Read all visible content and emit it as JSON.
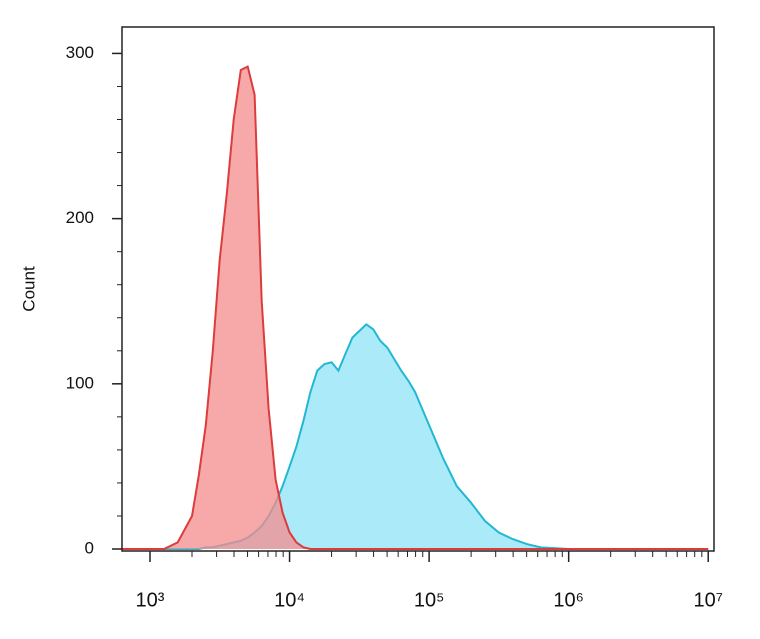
{
  "chart_data": {
    "type": "area",
    "y_label": "Count",
    "x_scale": "log",
    "xlim": [
      630,
      11000000
    ],
    "ylim": [
      -1.2,
      316
    ],
    "xticks": [
      {
        "value": 1000,
        "label": "10³"
      },
      {
        "value": 10000,
        "label": "10⁴"
      },
      {
        "value": 100000,
        "label": "10⁵"
      },
      {
        "value": 1000000,
        "label": "10⁶"
      },
      {
        "value": 10000000,
        "label": "10⁷"
      }
    ],
    "yticks": [
      0,
      100,
      200,
      300
    ],
    "x": [
      630,
      1000,
      1260,
      1580,
      2000,
      2240,
      2510,
      2820,
      3160,
      3550,
      3980,
      4470,
      5010,
      5620,
      6310,
      7080,
      7940,
      8910,
      10000,
      11200,
      12600,
      14100,
      15800,
      17800,
      20000,
      22400,
      25100,
      28200,
      31600,
      35500,
      39800,
      44700,
      50100,
      56200,
      63100,
      70800,
      79400,
      89100,
      100000,
      126000,
      158000,
      200000,
      251000,
      316000,
      398000,
      501000,
      631000,
      1000000,
      10000000
    ],
    "series": [
      {
        "color": "#22b8d2",
        "fill": "#8fe3f7",
        "values": [
          0,
          0,
          0,
          0,
          0,
          0,
          1,
          1,
          2,
          3,
          4,
          5,
          7,
          10,
          14,
          20,
          28,
          38,
          50,
          62,
          78,
          95,
          108,
          112,
          113,
          108,
          118,
          128,
          132,
          136,
          133,
          126,
          122,
          115,
          108,
          102,
          95,
          85,
          75,
          55,
          38,
          28,
          17,
          10,
          6,
          3,
          1,
          0,
          0
        ]
      },
      {
        "color": "#dc3c3c",
        "fill": "#f48c8c",
        "values": [
          0,
          0,
          0,
          4,
          20,
          45,
          75,
          120,
          175,
          215,
          260,
          290,
          292,
          275,
          150,
          85,
          42,
          22,
          10,
          4,
          1,
          0,
          0,
          0,
          0,
          0,
          0,
          0,
          0,
          0,
          0,
          0,
          0,
          0,
          0,
          0,
          0,
          0,
          0,
          0,
          0,
          0,
          0,
          0,
          0,
          0,
          0,
          0,
          0
        ]
      }
    ]
  }
}
